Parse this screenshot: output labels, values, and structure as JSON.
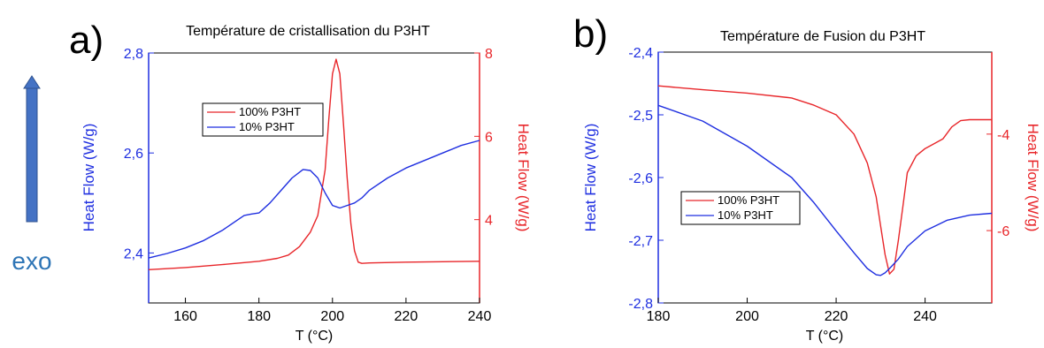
{
  "side": {
    "label": "exo",
    "arrow_color": "#4472c4",
    "label_color": "#2e75b6"
  },
  "chart_data": [
    {
      "type": "line",
      "panel_label": "a)",
      "title": "Température de cristallisation du P3HT",
      "xlabel": "T (°C)",
      "ylabel_left": "Heat Flow (W/g)",
      "ylabel_right": "Heat Flow (W/g)",
      "xlim": [
        150,
        240
      ],
      "ylim_left": [
        2.3,
        2.8
      ],
      "ylim_right": [
        2,
        8
      ],
      "x_ticks": [
        160,
        180,
        200,
        220,
        240
      ],
      "y_left_ticks": [
        "2,4",
        "2,6",
        "2,8"
      ],
      "y_left_tick_values": [
        2.4,
        2.6,
        2.8
      ],
      "y_right_ticks": [
        "4",
        "6",
        "8"
      ],
      "y_right_tick_values": [
        4,
        6,
        8
      ],
      "legend_position": "upper-left",
      "series": [
        {
          "name": "100% P3HT",
          "axis": "right",
          "color": "#e8262a",
          "x": [
            150,
            160,
            170,
            180,
            185,
            188,
            191,
            194,
            196,
            198,
            199,
            200,
            201,
            202,
            203,
            204,
            205,
            206,
            207,
            208,
            210,
            220,
            230,
            240
          ],
          "y": [
            2.8,
            2.85,
            2.92,
            3.0,
            3.07,
            3.15,
            3.35,
            3.7,
            4.1,
            5.2,
            6.4,
            7.5,
            7.85,
            7.5,
            6.3,
            5.0,
            3.9,
            3.25,
            2.98,
            2.95,
            2.96,
            2.98,
            2.99,
            3.0
          ]
        },
        {
          "name": "10% P3HT",
          "axis": "left",
          "color": "#1f2fe0",
          "x": [
            150,
            155,
            160,
            165,
            170,
            174,
            176,
            178,
            180,
            183,
            186,
            189,
            192,
            194,
            196,
            198,
            200,
            202,
            204,
            206,
            208,
            210,
            215,
            220,
            225,
            230,
            235,
            240
          ],
          "y": [
            2.39,
            2.399,
            2.41,
            2.425,
            2.445,
            2.465,
            2.475,
            2.478,
            2.48,
            2.5,
            2.525,
            2.55,
            2.567,
            2.565,
            2.55,
            2.52,
            2.495,
            2.49,
            2.495,
            2.5,
            2.51,
            2.525,
            2.55,
            2.57,
            2.585,
            2.6,
            2.615,
            2.625
          ]
        }
      ]
    },
    {
      "type": "line",
      "panel_label": "b)",
      "title": "Température de Fusion du P3HT",
      "xlabel": "T (°C)",
      "ylabel_left": "Heat Flow (W/g)",
      "ylabel_right": "Heat Flow (W/g)",
      "xlim": [
        180,
        255
      ],
      "ylim_left": [
        -2.8,
        -2.4
      ],
      "ylim_right": [
        -7.5,
        -2.3
      ],
      "x_ticks": [
        180,
        200,
        220,
        240
      ],
      "y_left_ticks": [
        "-2,8",
        "-2,7",
        "-2,6",
        "-2,5",
        "-2,4"
      ],
      "y_left_tick_values": [
        -2.8,
        -2.7,
        -2.6,
        -2.5,
        -2.4
      ],
      "y_right_ticks": [
        "-6",
        "-4"
      ],
      "y_right_tick_values": [
        -6,
        -4
      ],
      "legend_position": "middle-left",
      "series": [
        {
          "name": "100% P3HT",
          "axis": "right",
          "color": "#e8262a",
          "x": [
            180,
            190,
            200,
            210,
            215,
            220,
            224,
            227,
            229,
            230,
            231,
            232,
            233,
            234,
            235,
            236,
            238,
            240,
            242,
            244,
            246,
            248,
            250,
            255
          ],
          "y": [
            -3.0,
            -3.08,
            -3.15,
            -3.25,
            -3.4,
            -3.6,
            -4.0,
            -4.6,
            -5.3,
            -5.9,
            -6.5,
            -6.9,
            -6.8,
            -6.2,
            -5.5,
            -4.8,
            -4.45,
            -4.3,
            -4.2,
            -4.1,
            -3.85,
            -3.72,
            -3.7,
            -3.7
          ]
        },
        {
          "name": "10% P3HT",
          "axis": "left",
          "color": "#1f2fe0",
          "x": [
            180,
            190,
            200,
            210,
            215,
            220,
            224,
            227,
            229,
            230,
            231,
            232,
            234,
            236,
            240,
            245,
            250,
            255
          ],
          "y": [
            -2.485,
            -2.51,
            -2.55,
            -2.6,
            -2.64,
            -2.685,
            -2.72,
            -2.745,
            -2.755,
            -2.756,
            -2.752,
            -2.745,
            -2.73,
            -2.71,
            -2.685,
            -2.668,
            -2.66,
            -2.657
          ]
        }
      ]
    }
  ]
}
